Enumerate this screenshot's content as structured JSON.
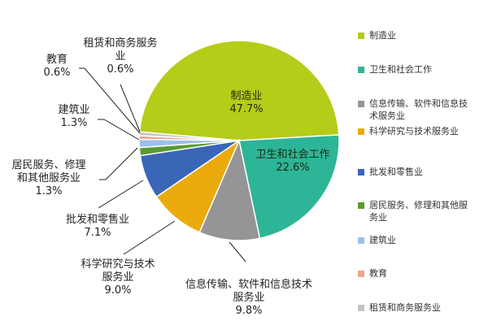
{
  "chart_data": {
    "type": "pie",
    "title": "",
    "start_angle_deg": 275,
    "center": [
      294,
      173
    ],
    "radius": 123,
    "slices": [
      {
        "label": "制造业",
        "value": 47.7,
        "display": "47.7%",
        "color": "#b5cc18"
      },
      {
        "label": "卫生和社会工作",
        "value": 22.6,
        "display": "22.6%",
        "color": "#2db597"
      },
      {
        "label": "信息传输、软件和信息技术服务业",
        "value": 9.8,
        "display": "9.8%",
        "color": "#959595"
      },
      {
        "label": "科学研究与技术服务业",
        "value": 9.0,
        "display": "9.0%",
        "color": "#ebaa0c"
      },
      {
        "label": "批发和零售业",
        "value": 7.1,
        "display": "7.1%",
        "color": "#3a66b8"
      },
      {
        "label": "居民服务、修理和其他服务业",
        "value": 1.3,
        "display": "1.3%",
        "color": "#5a9a32"
      },
      {
        "label": "建筑业",
        "value": 1.3,
        "display": "1.3%",
        "color": "#9cc0ea"
      },
      {
        "label": "教育",
        "value": 0.6,
        "display": "0.6%",
        "color": "#eba690"
      },
      {
        "label": "租赁和商务服务业",
        "value": 0.6,
        "display": "0.6%",
        "color": "#c4c4c4"
      }
    ],
    "legend_position": "right"
  },
  "labels": {
    "manufacturing": {
      "name": "制造业",
      "pct": "47.7%"
    },
    "health": {
      "name": "卫生和社会工作",
      "pct": "22.6%"
    },
    "it": {
      "line1": "信息传输、软件和信息技术",
      "line2": "服务业",
      "pct": "9.8%"
    },
    "science": {
      "line1": "科学研究与技术",
      "line2": "服务业",
      "pct": "9.0%"
    },
    "wholesale": {
      "name": "批发和零售业",
      "pct": "7.1%"
    },
    "resident": {
      "line1": "居民服务、修理",
      "line2": "和其他服务业",
      "pct": "1.3%"
    },
    "construction": {
      "name": "建筑业",
      "pct": "1.3%"
    },
    "education": {
      "name": "教育",
      "pct": "0.6%"
    },
    "leasing": {
      "line1": "租赁和商务服务",
      "line2": "业",
      "pct": "0.6%"
    }
  },
  "legend": [
    {
      "label": "制造业",
      "color": "#b5cc18"
    },
    {
      "label": "卫生和社会工作",
      "color": "#2db597"
    },
    {
      "label": "信息传输、软件和信息技术服务业",
      "color": "#959595"
    },
    {
      "label": "科学研究与技术服务业",
      "color": "#ebaa0c"
    },
    {
      "label": "批发和零售业",
      "color": "#3a66b8"
    },
    {
      "label": "居民服务、修理和其他服务业",
      "color": "#5a9a32"
    },
    {
      "label": "建筑业",
      "color": "#9cc0ea"
    },
    {
      "label": "教育",
      "color": "#eba690"
    },
    {
      "label": "租赁和商务服务业",
      "color": "#c4c4c4"
    }
  ]
}
